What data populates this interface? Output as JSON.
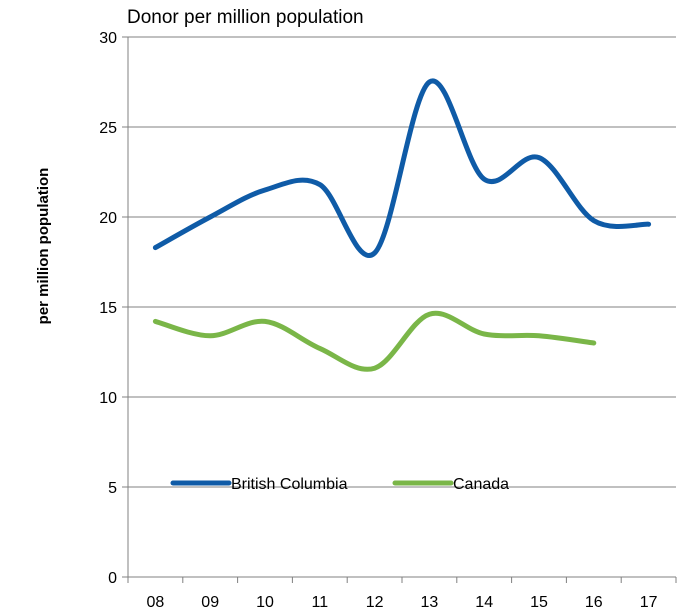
{
  "chart_data": {
    "type": "line",
    "title": "Donor per million population",
    "xlabel": "",
    "ylabel": "per million population",
    "categories": [
      "08",
      "09",
      "10",
      "11",
      "12",
      "13",
      "14",
      "15",
      "16",
      "17"
    ],
    "yticks": [
      "0",
      "5",
      "10",
      "15",
      "20",
      "25",
      "30"
    ],
    "ylim": [
      0,
      30
    ],
    "grid": true,
    "legend_position": "lower-left",
    "series": [
      {
        "name": "British Columbia",
        "color": "#0f5ba7",
        "values": [
          18.3,
          20.0,
          21.5,
          21.8,
          18.0,
          27.5,
          22.1,
          23.3,
          19.8,
          19.6
        ]
      },
      {
        "name": "Canada",
        "color": "#7ab648",
        "values": [
          14.2,
          13.4,
          14.2,
          12.7,
          11.6,
          14.6,
          13.5,
          13.4,
          13.0,
          null
        ]
      }
    ]
  }
}
